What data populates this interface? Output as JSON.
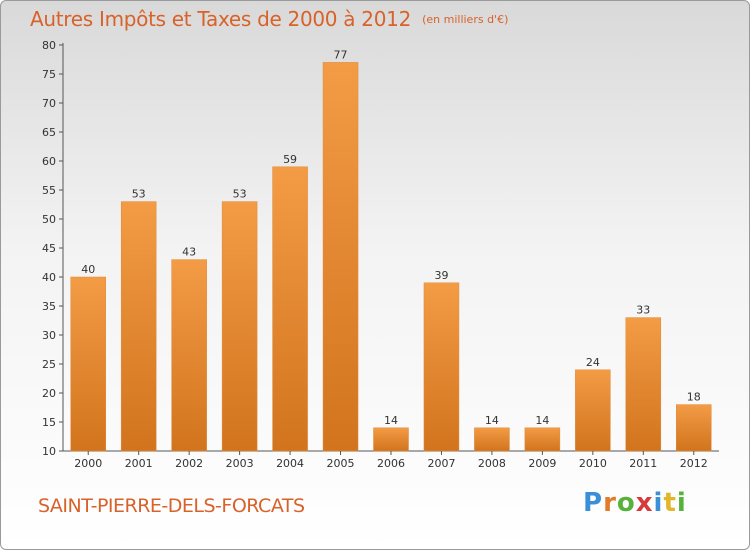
{
  "header": {
    "title": "Autres Impôts et Taxes de 2000 à 2012",
    "subtitle": "(en milliers d'€)"
  },
  "footer": {
    "location": "SAINT-PIERRE-DELS-FORCATS",
    "brand": [
      "P",
      "r",
      "o",
      "x",
      "i",
      "t",
      "i"
    ]
  },
  "colors": {
    "bar": "#f39b45",
    "bar_dark": "#d2741e",
    "accent": "#d8622a",
    "axis": "#555555"
  },
  "chart_data": {
    "type": "bar",
    "title": "Autres Impôts et Taxes de 2000 à 2012",
    "subtitle": "(en milliers d'€)",
    "categories": [
      "2000",
      "2001",
      "2002",
      "2003",
      "2004",
      "2005",
      "2006",
      "2007",
      "2008",
      "2009",
      "2010",
      "2011",
      "2012"
    ],
    "values": [
      40,
      53,
      43,
      53,
      59,
      77,
      14,
      39,
      14,
      14,
      24,
      33,
      18
    ],
    "ylim": [
      10,
      80
    ],
    "yticks": [
      10,
      15,
      20,
      25,
      30,
      35,
      40,
      45,
      50,
      55,
      60,
      65,
      70,
      75,
      80
    ],
    "grid": false,
    "data_labels": true
  }
}
